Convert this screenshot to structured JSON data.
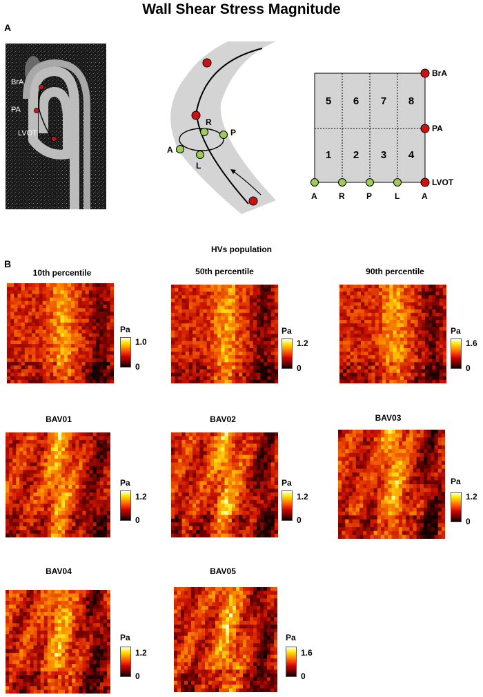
{
  "title": "Wall Shear Stress Magnitude",
  "panel_a": {
    "letter": "A",
    "mri_labels": [
      "BrA",
      "PA",
      "LVOT"
    ],
    "mid_labels": [
      "R",
      "P",
      "A",
      "L"
    ],
    "grid": {
      "segments": [
        "5",
        "6",
        "7",
        "8",
        "1",
        "2",
        "3",
        "4"
      ],
      "right_labels": [
        "BrA",
        "PA",
        "LVOT"
      ],
      "bottom_labels": [
        "A",
        "R",
        "P",
        "L",
        "A"
      ]
    }
  },
  "panel_b": {
    "letter": "B",
    "group_label": "HVs population",
    "unit": "Pa",
    "maps": [
      {
        "title": "10th percentile",
        "scale_max": "1.0",
        "scale_min": "0"
      },
      {
        "title": "50th percentile",
        "scale_max": "1.2",
        "scale_min": "0"
      },
      {
        "title": "90th percentile",
        "scale_max": "1.6",
        "scale_min": "0"
      },
      {
        "title": "BAV01",
        "scale_max": "1.2",
        "scale_min": "0"
      },
      {
        "title": "BAV02",
        "scale_max": "1.2",
        "scale_min": "0"
      },
      {
        "title": "BAV03",
        "scale_max": "1.2",
        "scale_min": "0"
      },
      {
        "title": "BAV04",
        "scale_max": "1.2",
        "scale_min": "0"
      },
      {
        "title": "BAV05",
        "scale_max": "1.6",
        "scale_min": "0"
      }
    ]
  },
  "colors": {
    "vessel_gray": "#d4d4d4",
    "marker_red": "#cc1111",
    "marker_green": "#9ccc55"
  }
}
